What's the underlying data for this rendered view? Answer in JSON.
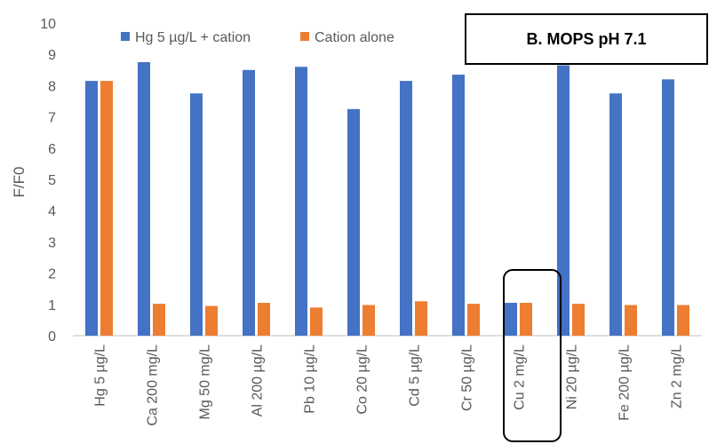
{
  "chart_data": {
    "type": "bar",
    "title": "B. MOPS pH 7.1",
    "ylabel": "F/F0",
    "xlabel": "",
    "ylim": [
      0,
      10
    ],
    "yticks": [
      0,
      1,
      2,
      3,
      4,
      5,
      6,
      7,
      8,
      9,
      10
    ],
    "grid": false,
    "legend_position": "top",
    "categories": [
      "Hg 5 µg/L",
      "Ca 200 mg/L",
      "Mg 50 mg/L",
      "Al 200 µg/L",
      "Pb 10 µg/L",
      "Co 20 µg/L",
      "Cd 5 µg/L",
      "Cr 50 µg/L",
      "Cu 2 mg/L",
      "Ni 20 µg/L",
      "Fe 200 µg/L",
      "Zn 2 mg/L"
    ],
    "series": [
      {
        "name": "Hg 5 µg/L + cation",
        "color": "#4472C4",
        "values": [
          8.15,
          8.75,
          7.75,
          8.5,
          8.6,
          7.25,
          8.15,
          8.35,
          1.05,
          8.65,
          7.75,
          8.2
        ]
      },
      {
        "name": "Cation alone",
        "color": "#ED7D31",
        "values": [
          8.15,
          1.02,
          0.95,
          1.05,
          0.9,
          0.98,
          1.1,
          1.02,
          1.05,
          1.02,
          0.98,
          0.98
        ]
      }
    ],
    "highlighted_category": "Cu 2 mg/L"
  }
}
